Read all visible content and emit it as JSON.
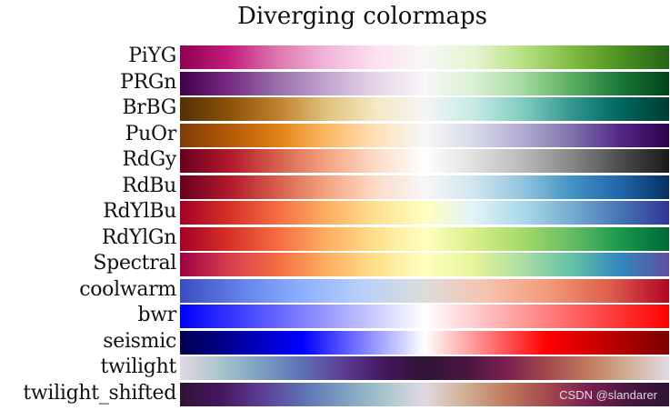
{
  "chart_data": {
    "type": "heatmap",
    "title": "Diverging colormaps",
    "xlabel": "",
    "ylabel": "",
    "grid": false,
    "legend": null,
    "x_range": [
      0,
      1
    ],
    "colormaps": [
      {
        "name": "PiYG",
        "stops": [
          "#8e0152",
          "#c51b7d",
          "#de77ae",
          "#f1b6da",
          "#fde0ef",
          "#f7f7f7",
          "#e6f5d0",
          "#b8e186",
          "#7fbc41",
          "#4d9221",
          "#276419"
        ]
      },
      {
        "name": "PRGn",
        "stops": [
          "#40004b",
          "#762a83",
          "#9970ab",
          "#c2a5cf",
          "#e7d4e8",
          "#f7f7f7",
          "#d9f0d3",
          "#a6dba0",
          "#5aae61",
          "#1b7837",
          "#00441b"
        ]
      },
      {
        "name": "BrBG",
        "stops": [
          "#543005",
          "#8c510a",
          "#bf812d",
          "#dfc27d",
          "#f6e8c3",
          "#f5f5f5",
          "#c7eae5",
          "#80cdc1",
          "#35978f",
          "#01665e",
          "#003c30"
        ]
      },
      {
        "name": "PuOr",
        "stops": [
          "#7f3b08",
          "#b35806",
          "#e08214",
          "#fdb863",
          "#fee0b6",
          "#f7f7f7",
          "#d8daeb",
          "#b2abd2",
          "#8073ac",
          "#542788",
          "#2d004b"
        ]
      },
      {
        "name": "RdGy",
        "stops": [
          "#67001f",
          "#b2182b",
          "#d6604d",
          "#f4a582",
          "#fddbc7",
          "#ffffff",
          "#e0e0e0",
          "#bababa",
          "#878787",
          "#4d4d4d",
          "#1a1a1a"
        ]
      },
      {
        "name": "RdBu",
        "stops": [
          "#67001f",
          "#b2182b",
          "#d6604d",
          "#f4a582",
          "#fddbc7",
          "#f7f7f7",
          "#d1e5f0",
          "#92c5de",
          "#4393c3",
          "#2166ac",
          "#053061"
        ]
      },
      {
        "name": "RdYlBu",
        "stops": [
          "#a50026",
          "#d73027",
          "#f46d43",
          "#fdae61",
          "#fee090",
          "#ffffbf",
          "#e0f3f8",
          "#abd9e9",
          "#74add1",
          "#4575b4",
          "#313695"
        ]
      },
      {
        "name": "RdYlGn",
        "stops": [
          "#a50026",
          "#d73027",
          "#f46d43",
          "#fdae61",
          "#fee08b",
          "#ffffbf",
          "#d9ef8b",
          "#a6d96a",
          "#66bd63",
          "#1a9850",
          "#006837"
        ]
      },
      {
        "name": "Spectral",
        "stops": [
          "#9e0142",
          "#d53e4f",
          "#f46d43",
          "#fdae61",
          "#fee08b",
          "#ffffbf",
          "#e6f598",
          "#abdda4",
          "#66c2a5",
          "#3288bd",
          "#5e4fa2"
        ]
      },
      {
        "name": "coolwarm",
        "stops": [
          "#3b4cc0",
          "#6282ea",
          "#8db0fe",
          "#b8d0f9",
          "#dddcdc",
          "#f5c4ad",
          "#f49a7b",
          "#de604d",
          "#b40426"
        ]
      },
      {
        "name": "bwr",
        "stops": [
          "#0000ff",
          "#ffffff",
          "#ff0000"
        ]
      },
      {
        "name": "seismic",
        "stops": [
          "#00004c",
          "#0000ff",
          "#ffffff",
          "#ff0000",
          "#7f0000"
        ]
      },
      {
        "name": "twilight",
        "stops": [
          "#e2d9e2",
          "#a8c4cc",
          "#7b9fc0",
          "#5e6fb4",
          "#5c3e94",
          "#45175f",
          "#2f1436",
          "#4a1540",
          "#79204f",
          "#a3494e",
          "#c07a5f",
          "#d0ae93",
          "#e2d9e2"
        ]
      },
      {
        "name": "twilight_shifted",
        "stops": [
          "#2f1436",
          "#45175f",
          "#5c3e94",
          "#5e6fb4",
          "#7b9fc0",
          "#a8c4cc",
          "#e2d9e2",
          "#d0ae93",
          "#c07a5f",
          "#a3494e",
          "#79204f",
          "#4a1540",
          "#2f1436"
        ]
      }
    ]
  },
  "watermark": "CSDN @slandarer"
}
